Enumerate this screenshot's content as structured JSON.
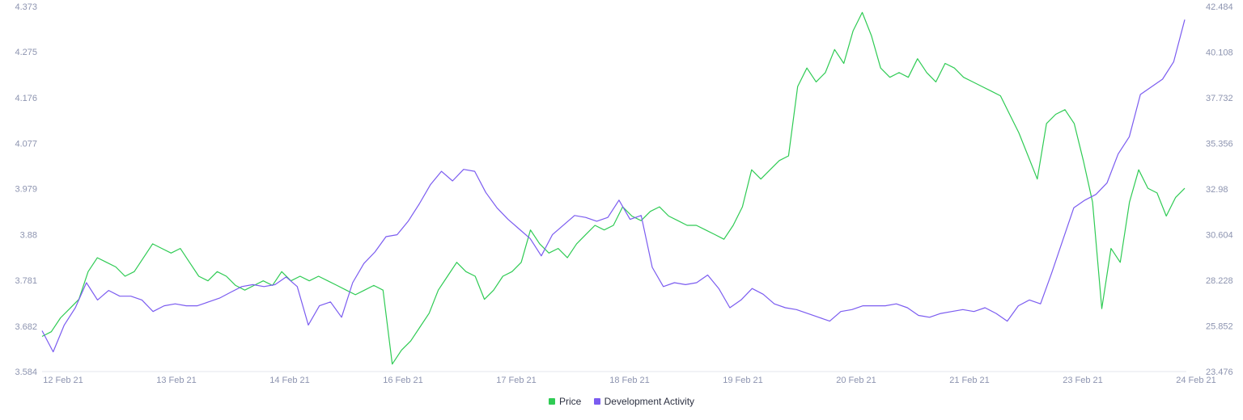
{
  "chart_data": {
    "type": "line",
    "title": "",
    "x_tick_labels": [
      "12 Feb 21",
      "13 Feb 21",
      "14 Feb 21",
      "16 Feb 21",
      "17 Feb 21",
      "18 Feb 21",
      "19 Feb 21",
      "20 Feb 21",
      "21 Feb 21",
      "23 Feb 21",
      "24 Feb 21"
    ],
    "y_left": {
      "ticks": [
        "3.584",
        "3.682",
        "3.781",
        "3.88",
        "3.979",
        "4.077",
        "4.176",
        "4.275",
        "4.373"
      ],
      "ylim": [
        3.584,
        4.373
      ]
    },
    "y_right": {
      "ticks": [
        "23.476",
        "25.852",
        "28.228",
        "30.604",
        "32.98",
        "35.356",
        "37.732",
        "40.108",
        "42.484"
      ],
      "ylim": [
        23.476,
        42.484
      ]
    },
    "legend_position": "bottom-center",
    "grid": false,
    "series": [
      {
        "name": "Price",
        "axis": "left",
        "color": "#2fcb54",
        "values": [
          3.66,
          3.67,
          3.7,
          3.72,
          3.74,
          3.8,
          3.83,
          3.82,
          3.81,
          3.79,
          3.8,
          3.83,
          3.86,
          3.85,
          3.84,
          3.85,
          3.82,
          3.79,
          3.78,
          3.8,
          3.79,
          3.77,
          3.76,
          3.77,
          3.78,
          3.77,
          3.8,
          3.78,
          3.79,
          3.78,
          3.79,
          3.78,
          3.77,
          3.76,
          3.75,
          3.76,
          3.77,
          3.76,
          3.6,
          3.63,
          3.65,
          3.68,
          3.71,
          3.76,
          3.79,
          3.82,
          3.8,
          3.79,
          3.74,
          3.76,
          3.79,
          3.8,
          3.82,
          3.89,
          3.86,
          3.84,
          3.85,
          3.83,
          3.86,
          3.88,
          3.9,
          3.89,
          3.9,
          3.94,
          3.92,
          3.91,
          3.93,
          3.94,
          3.92,
          3.91,
          3.9,
          3.9,
          3.89,
          3.88,
          3.87,
          3.9,
          3.94,
          4.02,
          4.0,
          4.02,
          4.04,
          4.05,
          4.2,
          4.24,
          4.21,
          4.23,
          4.28,
          4.25,
          4.32,
          4.36,
          4.31,
          4.24,
          4.22,
          4.23,
          4.22,
          4.26,
          4.23,
          4.21,
          4.25,
          4.24,
          4.22,
          4.21,
          4.2,
          4.19,
          4.18,
          4.14,
          4.1,
          4.05,
          4.0,
          4.12,
          4.14,
          4.15,
          4.12,
          4.04,
          3.95,
          3.72,
          3.85,
          3.82,
          3.95,
          4.02,
          3.98,
          3.97,
          3.92,
          3.96,
          3.98
        ]
      },
      {
        "name": "Development Activity",
        "axis": "right",
        "color": "#7b5cf0",
        "values": [
          25.6,
          24.5,
          25.9,
          26.8,
          28.1,
          27.2,
          27.7,
          27.4,
          27.4,
          27.2,
          26.6,
          26.9,
          27.0,
          26.9,
          26.9,
          27.1,
          27.3,
          27.6,
          27.9,
          28.0,
          27.9,
          28.0,
          28.4,
          27.9,
          25.9,
          26.9,
          27.1,
          26.3,
          28.1,
          29.1,
          29.7,
          30.5,
          30.6,
          31.3,
          32.2,
          33.2,
          33.9,
          33.4,
          34.0,
          33.9,
          32.8,
          32.0,
          31.4,
          30.9,
          30.4,
          29.5,
          30.6,
          31.1,
          31.6,
          31.5,
          31.3,
          31.5,
          32.4,
          31.4,
          31.6,
          28.9,
          27.9,
          28.1,
          28.0,
          28.1,
          28.5,
          27.8,
          26.8,
          27.2,
          27.8,
          27.5,
          27.0,
          26.8,
          26.7,
          26.5,
          26.3,
          26.1,
          26.6,
          26.7,
          26.9,
          26.9,
          26.9,
          27.0,
          26.8,
          26.4,
          26.3,
          26.5,
          26.6,
          26.7,
          26.6,
          26.8,
          26.5,
          26.1,
          26.9,
          27.2,
          27.0,
          28.6,
          30.3,
          32.0,
          32.4,
          32.7,
          33.3,
          34.8,
          35.7,
          37.9,
          38.3,
          38.7,
          39.6,
          41.8
        ]
      }
    ]
  }
}
